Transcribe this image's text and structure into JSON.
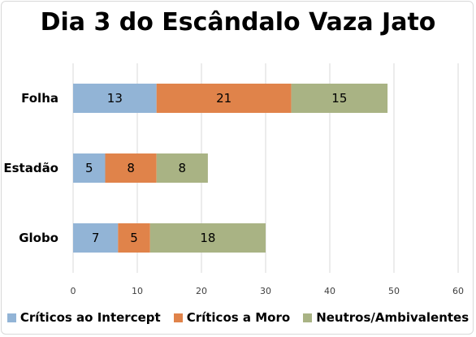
{
  "chart_data": {
    "type": "bar",
    "orientation": "horizontal",
    "stacked": true,
    "title": "Dia 3 do Escândalo Vaza Jato",
    "categories": [
      "Folha",
      "Estadão",
      "Globo"
    ],
    "series": [
      {
        "name": "Críticos ao Intercept",
        "color": "#92b4d6",
        "values": [
          13,
          5,
          7
        ]
      },
      {
        "name": "Críticos a Moro",
        "color": "#e0834a",
        "values": [
          21,
          8,
          5
        ]
      },
      {
        "name": "Neutros/Ambivalentes",
        "color": "#a9b384",
        "values": [
          15,
          8,
          18
        ]
      }
    ],
    "xlim": [
      0,
      60
    ],
    "xticks": [
      0,
      10,
      20,
      30,
      40,
      50,
      60
    ],
    "grid": true,
    "legend_position": "bottom",
    "data_labels": true
  }
}
